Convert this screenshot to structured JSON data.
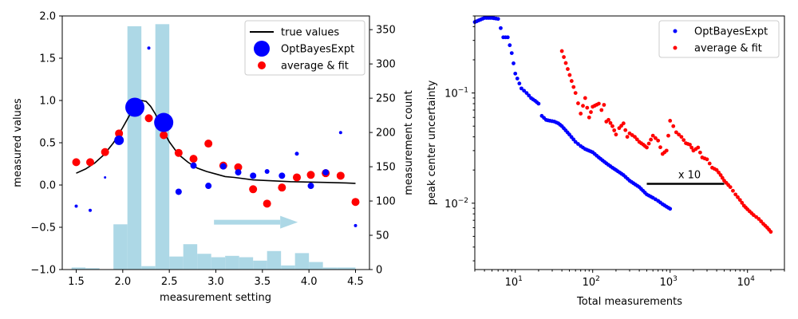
{
  "chart_data": [
    {
      "type": "scatter",
      "xlabel": "measurement setting",
      "ylabel": "measured values",
      "y2label": "measurement count",
      "xlim": [
        1.35,
        4.65
      ],
      "ylim": [
        -1.0,
        2.0
      ],
      "y2lim": [
        0,
        370
      ],
      "xticks": [
        "1.5",
        "2.0",
        "2.5",
        "3.0",
        "3.5",
        "4.0",
        "4.5"
      ],
      "yticks": [
        "−1.0",
        "−0.5",
        "0.0",
        "0.5",
        "1.0",
        "1.5",
        "2.0"
      ],
      "y2ticks": [
        "0",
        "50",
        "100",
        "150",
        "200",
        "250",
        "300",
        "350"
      ],
      "legend": {
        "position": "upper right",
        "entries": [
          "true values",
          "OptBayesExpt",
          "average & fit"
        ]
      },
      "colors": {
        "true_values": "#000000",
        "optbayes": "#0000ff",
        "average": "#ff0000",
        "histogram": "#add8e6",
        "arrow": "#add8e6"
      },
      "histogram": {
        "series_name": "measurement count",
        "bin_edges": [
          1.45,
          1.6,
          1.75,
          1.9,
          2.05,
          2.2,
          2.35,
          2.5,
          2.65,
          2.8,
          2.95,
          3.1,
          3.25,
          3.4,
          3.55,
          3.7,
          3.85,
          4.0,
          4.15,
          4.3,
          4.5
        ],
        "counts": [
          3,
          2,
          0,
          66,
          355,
          5,
          358,
          19,
          37,
          23,
          18,
          20,
          18,
          13,
          27,
          6,
          24,
          11,
          3,
          3
        ]
      },
      "true_values": {
        "x": [
          1.5,
          1.6,
          1.7,
          1.8,
          1.9,
          2.0,
          2.05,
          2.1,
          2.15,
          2.2,
          2.25,
          2.3,
          2.35,
          2.4,
          2.45,
          2.5,
          2.6,
          2.7,
          2.8,
          2.9,
          3.0,
          3.1,
          3.2,
          3.4,
          3.6,
          3.8,
          4.0,
          4.2,
          4.4,
          4.5
        ],
        "y": [
          0.14,
          0.19,
          0.26,
          0.36,
          0.5,
          0.68,
          0.78,
          0.88,
          0.96,
          1.0,
          0.99,
          0.93,
          0.84,
          0.73,
          0.61,
          0.51,
          0.36,
          0.27,
          0.2,
          0.16,
          0.13,
          0.1,
          0.09,
          0.06,
          0.05,
          0.04,
          0.035,
          0.03,
          0.025,
          0.02
        ]
      },
      "optbayes": {
        "name": "OptBayesExpt",
        "points": [
          {
            "x": 1.5,
            "y": -0.25,
            "s": 2
          },
          {
            "x": 1.65,
            "y": -0.3,
            "s": 2
          },
          {
            "x": 1.81,
            "y": 0.09,
            "s": 1.5
          },
          {
            "x": 1.96,
            "y": 0.53,
            "s": 6
          },
          {
            "x": 2.13,
            "y": 0.92,
            "s": 12
          },
          {
            "x": 2.28,
            "y": 1.62,
            "s": 2
          },
          {
            "x": 2.44,
            "y": 0.74,
            "s": 12
          },
          {
            "x": 2.6,
            "y": -0.08,
            "s": 4
          },
          {
            "x": 2.76,
            "y": 0.23,
            "s": 4
          },
          {
            "x": 2.92,
            "y": -0.01,
            "s": 4
          },
          {
            "x": 3.08,
            "y": 0.22,
            "s": 4
          },
          {
            "x": 3.24,
            "y": 0.15,
            "s": 4
          },
          {
            "x": 3.4,
            "y": 0.11,
            "s": 4
          },
          {
            "x": 3.55,
            "y": 0.16,
            "s": 3
          },
          {
            "x": 3.71,
            "y": 0.11,
            "s": 4
          },
          {
            "x": 3.87,
            "y": 0.37,
            "s": 2.5
          },
          {
            "x": 4.02,
            "y": -0.01,
            "s": 4
          },
          {
            "x": 4.18,
            "y": 0.15,
            "s": 4
          },
          {
            "x": 4.34,
            "y": 0.62,
            "s": 2
          },
          {
            "x": 4.5,
            "y": -0.48,
            "s": 2
          }
        ]
      },
      "average_fit": {
        "name": "average & fit",
        "x": [
          1.5,
          1.65,
          1.81,
          1.96,
          2.13,
          2.28,
          2.44,
          2.6,
          2.76,
          2.92,
          3.08,
          3.24,
          3.4,
          3.55,
          3.71,
          3.87,
          4.02,
          4.18,
          4.34,
          4.5
        ],
        "y": [
          0.27,
          0.27,
          0.39,
          0.61,
          0.96,
          0.79,
          0.59,
          0.38,
          0.31,
          0.49,
          0.23,
          0.21,
          -0.05,
          -0.22,
          -0.03,
          0.09,
          0.12,
          0.14,
          0.11,
          -0.2
        ]
      },
      "arrow": {
        "x_from": 2.98,
        "x_to": 3.88,
        "y": -0.44
      }
    },
    {
      "type": "scatter",
      "xlabel": "Total measurements",
      "ylabel": "peak center uncertainty",
      "xscale": "log",
      "yscale": "log",
      "xlim": [
        3,
        30000
      ],
      "ylim": [
        0.0025,
        0.5
      ],
      "xticks": [
        {
          "base": "10",
          "exp": "1",
          "value": 10
        },
        {
          "base": "10",
          "exp": "2",
          "value": 100
        },
        {
          "base": "10",
          "exp": "3",
          "value": 1000
        },
        {
          "base": "10",
          "exp": "4",
          "value": 10000
        }
      ],
      "yticks": [
        {
          "base": "10",
          "exp": "−2",
          "value": 0.01
        },
        {
          "base": "10",
          "exp": "−1",
          "value": 0.1
        }
      ],
      "legend": {
        "position": "upper right",
        "entries": [
          "OptBayesExpt",
          "average & fit"
        ]
      },
      "colors": {
        "optbayes": "#0000ff",
        "average": "#ff0000"
      },
      "series": [
        {
          "name": "OptBayesExpt",
          "x": [
            3,
            4,
            5,
            6,
            7,
            8,
            9,
            10,
            12,
            14,
            16,
            18,
            20,
            22,
            25,
            28,
            32,
            36,
            40,
            50,
            60,
            70,
            80,
            100,
            120,
            150,
            180,
            200,
            250,
            300,
            400,
            500,
            600,
            700,
            800,
            900,
            1000
          ],
          "y": [
            0.44,
            0.48,
            0.48,
            0.47,
            0.32,
            0.32,
            0.23,
            0.15,
            0.11,
            0.1,
            0.09,
            0.085,
            0.08,
            0.062,
            0.057,
            0.056,
            0.055,
            0.053,
            0.05,
            0.042,
            0.036,
            0.033,
            0.031,
            0.029,
            0.026,
            0.023,
            0.021,
            0.02,
            0.018,
            0.016,
            0.014,
            0.012,
            0.0112,
            0.0105,
            0.0098,
            0.0093,
            0.0089
          ]
        },
        {
          "name": "average & fit",
          "x": [
            40,
            60,
            70,
            80,
            90,
            100,
            120,
            130,
            140,
            150,
            160,
            180,
            200,
            220,
            250,
            280,
            300,
            350,
            400,
            450,
            500,
            600,
            700,
            800,
            900,
            1000,
            1100,
            1200,
            1400,
            1600,
            1800,
            2000,
            2300,
            2600,
            3000,
            3500,
            4000,
            4500,
            5000,
            6000,
            7000,
            8000,
            9000,
            10000,
            12000,
            14000,
            16000,
            18000,
            20000
          ],
          "y": [
            0.24,
            0.1,
            0.065,
            0.09,
            0.06,
            0.075,
            0.08,
            0.07,
            0.078,
            0.055,
            0.057,
            0.05,
            0.042,
            0.048,
            0.053,
            0.04,
            0.043,
            0.04,
            0.036,
            0.034,
            0.032,
            0.041,
            0.037,
            0.028,
            0.03,
            0.056,
            0.05,
            0.044,
            0.04,
            0.035,
            0.034,
            0.03,
            0.032,
            0.026,
            0.025,
            0.021,
            0.02,
            0.018,
            0.016,
            0.014,
            0.012,
            0.0107,
            0.0095,
            0.0088,
            0.0078,
            0.0072,
            0.0065,
            0.006,
            0.0055
          ]
        }
      ],
      "annotation": {
        "text": "x 10",
        "x_from": 500,
        "x_to": 5000,
        "y": 0.015
      }
    }
  ]
}
